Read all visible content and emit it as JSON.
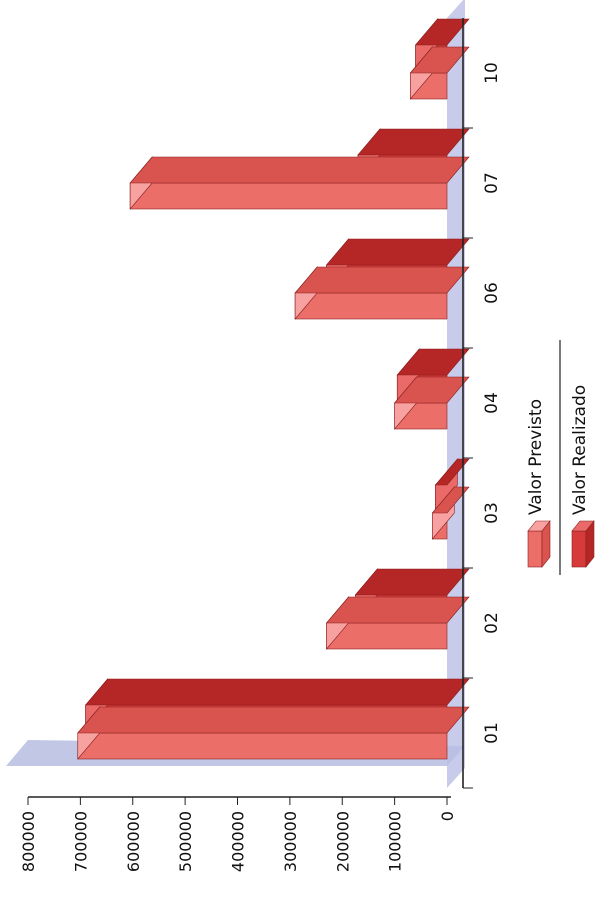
{
  "chart_data": {
    "type": "bar",
    "orientation": "rotated-3d",
    "categories": [
      "01",
      "02",
      "03",
      "04",
      "06",
      "07",
      "10"
    ],
    "series": [
      {
        "name": "Valor Previsto",
        "values": [
          705000,
          230000,
          28000,
          100000,
          290000,
          605000,
          70000
        ]
      },
      {
        "name": "Valor Realizado",
        "values": [
          690000,
          175000,
          22000,
          95000,
          230000,
          170000,
          60000
        ]
      }
    ],
    "y_ticks": [
      "0",
      "100000",
      "200000",
      "300000",
      "400000",
      "500000",
      "600000",
      "700000",
      "800000"
    ],
    "ylim": [
      0,
      800000
    ],
    "legend_position": "bottom",
    "colors": {
      "previsto_front": "#ec6e68",
      "previsto_top": "#f7a2a0",
      "previsto_side": "#d9534f",
      "realizado_front": "#d63a3a",
      "realizado_top": "#ea6a6a",
      "realizado_side": "#b52626",
      "wall": "#b9bde2",
      "floor": "#c8cbe9",
      "axis": "#222222"
    }
  }
}
